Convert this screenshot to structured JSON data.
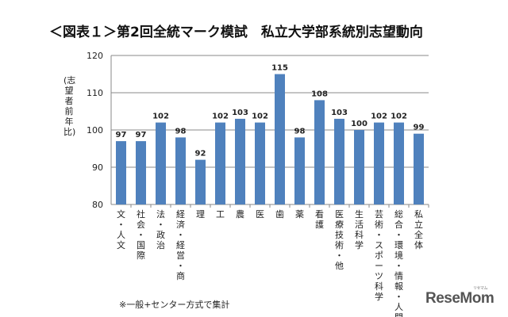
{
  "title": "＜図表１＞第2回全統マーク模試　私立大学部系統別志望動向",
  "ylabel": "(志望者前年比)",
  "note": "※一般+センター方式で集計",
  "logo": "ReseMom",
  "logo_sub": "リセマム",
  "chart_data": {
    "type": "bar",
    "title": "＜図表１＞第2回全統マーク模試　私立大学部系統別志望動向",
    "ylabel": "(志望者前年比)",
    "xlabel": "",
    "ylim": [
      80,
      120
    ],
    "yticks": [
      80,
      90,
      100,
      110,
      120
    ],
    "grid": true,
    "bar_color": "#4f81bd",
    "categories": [
      "文・人文",
      "社会・国際",
      "法・政治",
      "経済・経営・商",
      "理",
      "工",
      "農",
      "医",
      "歯",
      "薬",
      "看護",
      "医療技術・他",
      "生活科学",
      "芸術・スポーツ科学",
      "総合・環境・情報・人間",
      "私立全体"
    ],
    "values": [
      97,
      97,
      102,
      98,
      92,
      102,
      103,
      102,
      115,
      98,
      108,
      103,
      100,
      102,
      102,
      99
    ]
  }
}
